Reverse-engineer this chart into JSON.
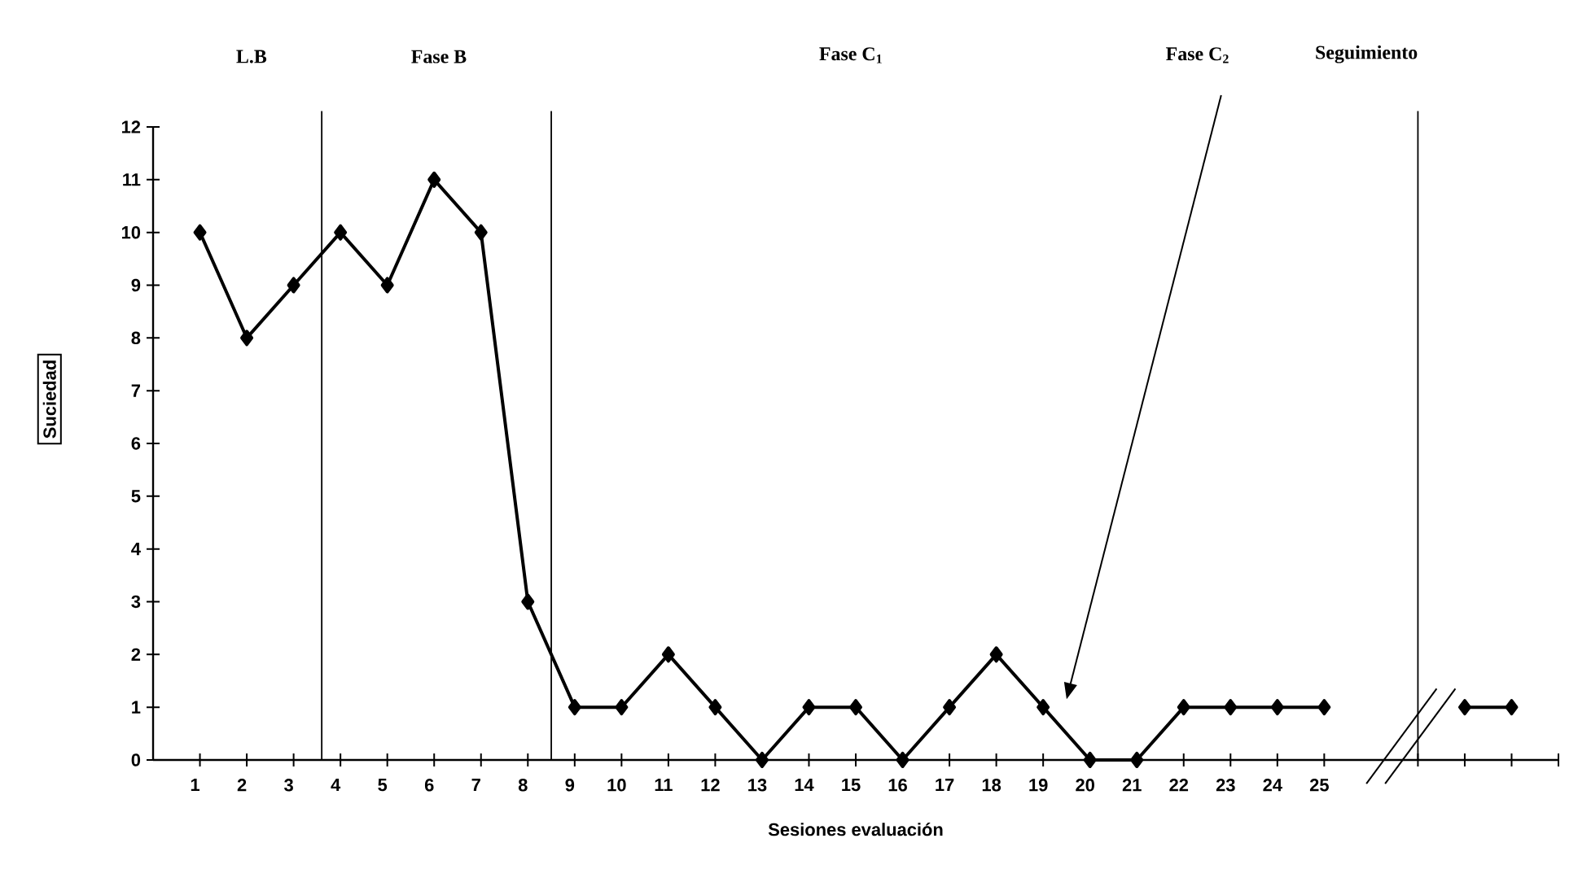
{
  "chart_data": {
    "type": "line",
    "xlabel": "Sesiones evaluación",
    "ylabel": "Suciedad",
    "x": [
      1,
      2,
      3,
      4,
      5,
      6,
      7,
      8,
      9,
      10,
      11,
      12,
      13,
      14,
      15,
      16,
      17,
      18,
      19,
      20,
      21,
      22,
      23,
      24,
      25,
      26,
      28,
      29
    ],
    "values": [
      10,
      8,
      9,
      10,
      9,
      11,
      10,
      3,
      1,
      1,
      2,
      1,
      0,
      1,
      1,
      0,
      1,
      2,
      1,
      0,
      0,
      1,
      1,
      1,
      1,
      null,
      1,
      1
    ],
    "color": "#000000",
    "marker": "diamond",
    "line_style": "solid",
    "xlim": [
      0,
      30
    ],
    "ylim": [
      0,
      12
    ],
    "xticks": [
      1,
      2,
      3,
      4,
      5,
      6,
      7,
      8,
      9,
      10,
      11,
      12,
      13,
      14,
      15,
      16,
      17,
      18,
      19,
      20,
      21,
      22,
      23,
      24,
      25,
      {
        "value": 27,
        "label": null
      },
      {
        "value": 28,
        "label": null
      },
      {
        "value": 29,
        "label": null
      },
      {
        "value": 30,
        "label": null
      }
    ],
    "yticks": [
      0,
      1,
      2,
      3,
      4,
      5,
      6,
      7,
      8,
      9,
      10,
      11,
      12
    ],
    "ref_lines": [
      {
        "axis": "x",
        "value": 3.6
      },
      {
        "axis": "x",
        "value": 8.5
      },
      {
        "axis": "x",
        "value": 27
      }
    ],
    "annotations": [
      "L.B",
      "Fase B",
      "Fase C$_{1}$",
      "Fase C$_{2}$",
      "Seguimiento"
    ]
  }
}
